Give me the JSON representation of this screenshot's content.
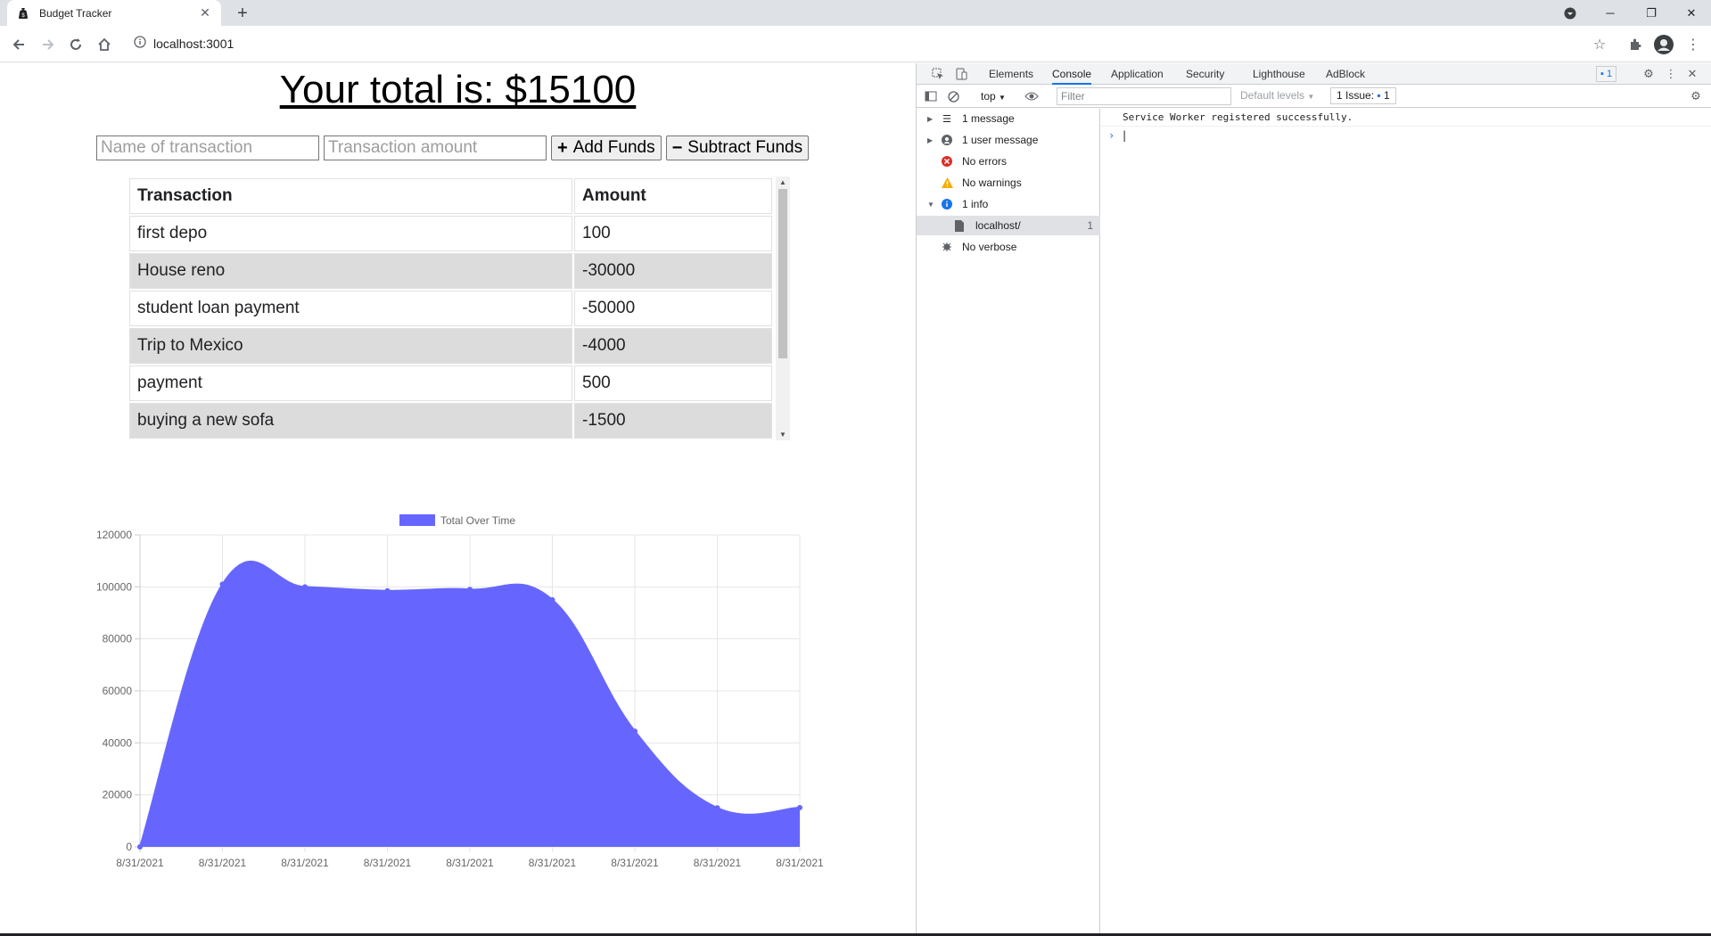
{
  "browser": {
    "tab_title": "Budget Tracker",
    "new_tab": "+",
    "url": "localhost:3001"
  },
  "page": {
    "total_text": "Your total is: $15100",
    "name_placeholder": "Name of transaction",
    "amount_placeholder": "Transaction amount",
    "add_label": "Add Funds",
    "subtract_label": "Subtract Funds",
    "table_headers": [
      "Transaction",
      "Amount"
    ],
    "transactions": [
      {
        "name": "first depo",
        "amount": "100"
      },
      {
        "name": "House reno",
        "amount": "-30000"
      },
      {
        "name": "student loan payment",
        "amount": "-50000"
      },
      {
        "name": "Trip to Mexico",
        "amount": "-4000"
      },
      {
        "name": "payment",
        "amount": "500"
      },
      {
        "name": "buying a new sofa",
        "amount": "-1500"
      }
    ]
  },
  "chart_data": {
    "type": "area",
    "legend": [
      "Total Over Time"
    ],
    "legend_position": "top",
    "x": [
      "8/31/2021",
      "8/31/2021",
      "8/31/2021",
      "8/31/2021",
      "8/31/2021",
      "8/31/2021",
      "8/31/2021",
      "8/31/2021",
      "8/31/2021"
    ],
    "series": [
      {
        "name": "Total Over Time",
        "values": [
          0,
          101000,
          100000,
          98500,
          99000,
          95000,
          44500,
          15000,
          15100
        ]
      }
    ],
    "y_ticks": [
      "0",
      "20000",
      "40000",
      "60000",
      "80000",
      "100000",
      "120000"
    ],
    "ylim": [
      0,
      120000
    ],
    "grid": true,
    "fill_color": "#6666ff"
  },
  "devtools": {
    "tabs": [
      "Elements",
      "Console",
      "Application",
      "Security",
      "Lighthouse",
      "AdBlock"
    ],
    "active_tab": "Console",
    "badge_count": "1",
    "context": "top",
    "filter_placeholder": "Filter",
    "levels": "Default levels",
    "issues_label": "1 Issue:",
    "issues_count": "1",
    "sidebar": [
      {
        "label": "1 message",
        "icon": "list-icon"
      },
      {
        "label": "1 user message",
        "icon": "user-icon"
      },
      {
        "label": "No errors",
        "icon": "error-icon"
      },
      {
        "label": "No warnings",
        "icon": "warning-icon"
      },
      {
        "label": "1 info",
        "icon": "info-icon"
      },
      {
        "label": "localhost/",
        "icon": "file-icon",
        "count": "1"
      },
      {
        "label": "No verbose",
        "icon": "bug-icon"
      }
    ],
    "console_message": "Service Worker registered successfully.",
    "prompt": "›"
  }
}
